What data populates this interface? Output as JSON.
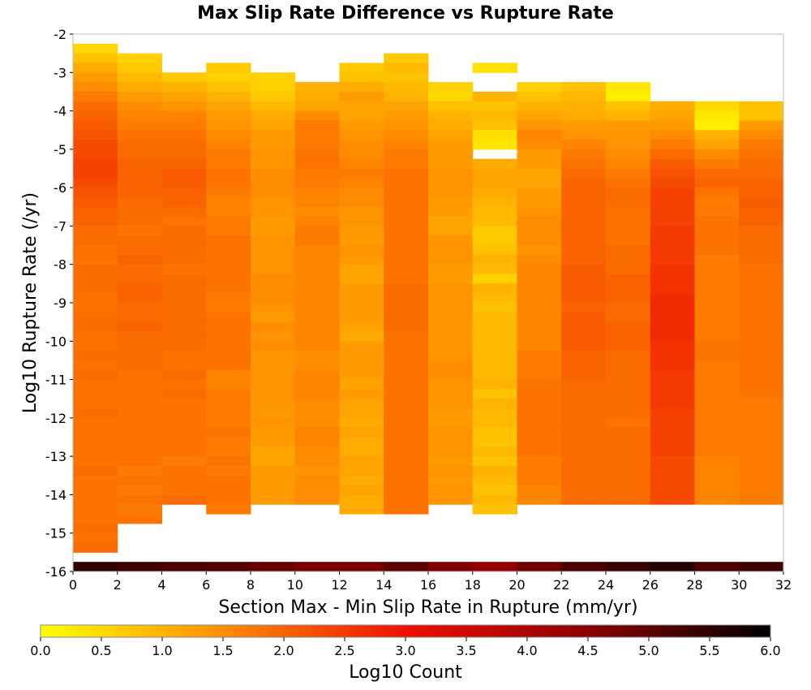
{
  "chart_data": {
    "type": "heatmap",
    "title": "Max Slip Rate Difference vs Rupture Rate",
    "xlabel": "Section Max - Min Slip Rate in Rupture (mm/yr)",
    "ylabel": "Log10 Rupture Rate (/yr)",
    "xlim": [
      0,
      32
    ],
    "ylim": [
      -16,
      -2
    ],
    "x_ticks": [
      "0",
      "2",
      "4",
      "6",
      "8",
      "10",
      "12",
      "14",
      "16",
      "18",
      "20",
      "22",
      "24",
      "26",
      "28",
      "30",
      "32"
    ],
    "y_ticks": [
      "-2",
      "-3",
      "-4",
      "-5",
      "-6",
      "-7",
      "-8",
      "-9",
      "-10",
      "-11",
      "-12",
      "-13",
      "-14",
      "-15",
      "-16"
    ],
    "colorbar": {
      "label": "Log10 Count",
      "range": [
        0,
        6
      ],
      "ticks": [
        "0.0",
        "0.5",
        "1.0",
        "1.5",
        "2.0",
        "2.5",
        "3.0",
        "3.5",
        "4.0",
        "4.5",
        "5.0",
        "5.5",
        "6.0"
      ],
      "colors": [
        "#ffff00",
        "#ff8c00",
        "#ee1100",
        "#8b0000",
        "#000000"
      ]
    },
    "x_bin_width": 2,
    "y_bin_height": 0.25,
    "columns": [
      {
        "x": 1,
        "ymax": -2.375,
        "values": [
          0.5,
          0.8,
          1.1,
          1.3,
          1.5,
          1.7,
          1.9,
          2.0,
          2.1,
          2.2,
          2.3,
          2.3,
          2.4,
          2.4,
          2.3,
          2.2,
          2.1,
          2.0,
          2.0,
          1.9,
          1.9,
          1.8,
          1.8,
          1.9,
          1.9,
          1.9,
          1.8,
          1.8,
          1.9,
          1.9,
          1.8,
          1.8,
          1.9,
          1.8,
          1.9,
          1.8,
          1.8,
          1.8,
          1.9,
          1.8,
          1.8,
          1.8,
          1.8,
          1.8,
          1.9,
          1.8,
          1.8,
          1.8,
          1.8,
          1.8,
          1.9,
          1.8,
          1.9
        ]
      },
      {
        "x": 3,
        "ymax": -2.625,
        "values": [
          0.6,
          0.7,
          0.9,
          1.1,
          1.3,
          1.5,
          1.6,
          1.7,
          1.8,
          1.9,
          1.9,
          2.0,
          2.0,
          2.0,
          2.0,
          1.9,
          1.9,
          1.9,
          1.8,
          1.9,
          1.9,
          2.0,
          1.9,
          1.9,
          2.0,
          2.0,
          1.9,
          1.9,
          2.0,
          1.9,
          1.9,
          1.9,
          1.9,
          1.8,
          1.8,
          1.8,
          1.8,
          1.8,
          1.8,
          1.8,
          1.8,
          1.8,
          1.8,
          1.7,
          1.8,
          1.7,
          1.8,
          1.7,
          1.8
        ]
      },
      {
        "x": 5,
        "ymax": -3.125,
        "values": [
          0.7,
          1.0,
          1.2,
          1.4,
          1.6,
          1.7,
          1.8,
          1.9,
          1.9,
          2.0,
          2.1,
          2.1,
          2.0,
          2.0,
          1.9,
          1.8,
          1.9,
          1.9,
          1.9,
          1.9,
          1.8,
          1.9,
          1.9,
          1.9,
          1.9,
          1.9,
          1.9,
          1.9,
          1.9,
          1.8,
          1.8,
          1.9,
          1.8,
          1.9,
          1.8,
          1.8,
          1.8,
          1.8,
          1.8,
          1.8,
          1.7,
          1.8,
          1.8,
          1.8,
          1.9
        ]
      },
      {
        "x": 7,
        "ymax": -2.875,
        "values": [
          0.7,
          0.6,
          0.8,
          1.0,
          1.2,
          1.3,
          1.4,
          1.5,
          1.6,
          1.7,
          1.7,
          1.8,
          1.8,
          1.7,
          1.6,
          1.6,
          1.7,
          1.7,
          1.8,
          1.8,
          1.8,
          1.8,
          1.8,
          1.8,
          1.7,
          1.7,
          1.8,
          1.8,
          1.8,
          1.8,
          1.8,
          1.8,
          1.6,
          1.6,
          1.7,
          1.7,
          1.7,
          1.7,
          1.8,
          1.7,
          1.7,
          1.8,
          1.7,
          1.8,
          1.8,
          1.8,
          1.7
        ]
      },
      {
        "x": 9,
        "ymax": -3.125,
        "values": [
          0.6,
          0.6,
          0.7,
          0.9,
          1.1,
          1.2,
          1.3,
          1.3,
          1.4,
          1.4,
          1.5,
          1.5,
          1.5,
          1.4,
          1.4,
          1.3,
          1.3,
          1.4,
          1.4,
          1.4,
          1.4,
          1.5,
          1.5,
          1.5,
          1.4,
          1.3,
          1.5,
          1.4,
          1.5,
          1.4,
          1.4,
          1.4,
          1.4,
          1.4,
          1.4,
          1.3,
          1.4,
          1.3,
          1.3,
          1.2,
          1.2,
          1.3,
          1.3,
          1.3,
          1.3
        ]
      },
      {
        "x": 11,
        "ymax": -3.375,
        "values": [
          1.0,
          1.1,
          1.2,
          1.5,
          1.7,
          1.7,
          1.7,
          1.8,
          1.8,
          1.7,
          1.7,
          1.6,
          1.6,
          1.5,
          1.6,
          1.7,
          1.7,
          1.6,
          1.6,
          1.6,
          1.6,
          1.6,
          1.6,
          1.6,
          1.6,
          1.6,
          1.6,
          1.6,
          1.5,
          1.5,
          1.6,
          1.6,
          1.6,
          1.5,
          1.5,
          1.5,
          1.6,
          1.6,
          1.5,
          1.5,
          1.4,
          1.5,
          1.5,
          1.5
        ]
      },
      {
        "x": 13,
        "ymax": -2.875,
        "values": [
          0.7,
          0.8,
          1.1,
          1.3,
          1.2,
          1.2,
          1.3,
          1.4,
          1.5,
          1.5,
          1.6,
          1.7,
          1.6,
          1.5,
          1.5,
          1.4,
          1.4,
          1.3,
          1.3,
          1.4,
          1.3,
          1.2,
          1.2,
          1.3,
          1.3,
          1.3,
          1.3,
          1.2,
          1.1,
          1.3,
          1.3,
          1.3,
          1.3,
          1.2,
          1.3,
          1.2,
          1.2,
          1.1,
          1.2,
          1.1,
          1.1,
          1.2,
          1.2,
          1.1,
          1.2,
          1.1,
          1.1
        ]
      },
      {
        "x": 15,
        "ymax": -2.625,
        "values": [
          0.7,
          0.9,
          0.8,
          0.9,
          1.0,
          1.2,
          1.3,
          1.4,
          1.5,
          1.6,
          1.7,
          1.7,
          1.8,
          1.8,
          1.8,
          1.8,
          1.8,
          1.8,
          1.8,
          1.8,
          1.8,
          1.8,
          1.8,
          1.8,
          1.9,
          1.9,
          1.9,
          1.9,
          1.9,
          1.8,
          1.8,
          1.8,
          1.8,
          1.8,
          1.8,
          1.8,
          1.8,
          1.8,
          1.8,
          1.8,
          1.8,
          1.8,
          1.8,
          1.8,
          1.8,
          1.8,
          1.8,
          1.8
        ]
      },
      {
        "x": 17,
        "ymax": -3.375,
        "values": [
          0.6,
          0.5,
          0.8,
          1.0,
          1.1,
          1.2,
          1.3,
          1.3,
          1.3,
          1.4,
          1.4,
          1.4,
          1.3,
          1.3,
          1.2,
          1.2,
          1.4,
          1.4,
          1.4,
          1.3,
          1.3,
          1.4,
          1.4,
          1.4,
          1.4,
          1.4,
          1.4,
          1.4,
          1.4,
          1.5,
          1.5,
          1.4,
          1.4,
          1.4,
          1.3,
          1.3,
          1.4,
          1.4,
          1.4,
          1.3,
          1.4,
          1.3,
          1.4,
          1.4
        ]
      },
      {
        "x": 19,
        "ymax": -2.875,
        "values": [
          0.4,
          null,
          null,
          1.0,
          0.8,
          0.9,
          0.8,
          0.4,
          0.3,
          null,
          1.1,
          1.2,
          1.2,
          1.1,
          1.0,
          0.9,
          0.9,
          0.7,
          0.7,
          0.8,
          1.0,
          0.9,
          0.6,
          1.0,
          0.9,
          0.8,
          0.9,
          0.9,
          0.9,
          0.9,
          0.9,
          0.9,
          0.9,
          1.0,
          0.8,
          1.0,
          0.9,
          0.9,
          0.8,
          0.8,
          0.9,
          0.8,
          1.0,
          0.9,
          0.8,
          0.9,
          0.8
        ]
      },
      {
        "x": 21,
        "ymax": -3.375,
        "values": [
          0.6,
          0.8,
          1.0,
          1.2,
          1.4,
          1.6,
          1.5,
          1.3,
          1.3,
          1.2,
          1.2,
          1.3,
          1.3,
          1.4,
          1.5,
          1.5,
          1.5,
          1.4,
          1.5,
          1.6,
          1.6,
          1.6,
          1.6,
          1.6,
          1.6,
          1.6,
          1.6,
          1.6,
          1.7,
          1.7,
          1.7,
          1.8,
          1.8,
          1.8,
          1.8,
          1.8,
          1.8,
          1.8,
          1.8,
          1.7,
          1.7,
          1.7,
          1.6,
          1.6
        ]
      },
      {
        "x": 23,
        "ymax": -3.375,
        "values": [
          0.8,
          0.9,
          1.0,
          1.1,
          1.3,
          1.4,
          1.6,
          1.7,
          1.8,
          1.9,
          2.0,
          2.0,
          2.0,
          2.0,
          2.0,
          2.0,
          2.0,
          2.0,
          2.0,
          2.1,
          2.1,
          2.1,
          2.1,
          2.0,
          2.1,
          2.1,
          2.1,
          2.1,
          2.0,
          2.0,
          2.0,
          1.9,
          1.9,
          1.9,
          1.9,
          1.9,
          1.9,
          1.9,
          1.9,
          1.9,
          1.9,
          1.9,
          1.9,
          1.9
        ]
      },
      {
        "x": 25,
        "ymax": -3.375,
        "values": [
          0.3,
          0.2,
          0.8,
          1.0,
          1.3,
          1.4,
          1.4,
          1.5,
          1.6,
          1.7,
          1.8,
          1.9,
          1.9,
          1.8,
          1.8,
          1.8,
          1.8,
          1.9,
          1.9,
          1.9,
          2.0,
          2.0,
          2.0,
          1.9,
          1.9,
          2.0,
          2.0,
          2.0,
          1.9,
          1.9,
          1.9,
          1.9,
          1.9,
          1.9,
          1.9,
          1.8,
          1.9,
          1.9,
          1.9,
          1.9,
          1.9,
          1.9,
          1.9,
          1.9
        ]
      },
      {
        "x": 27,
        "ymax": -3.875,
        "values": [
          1.1,
          1.2,
          1.3,
          1.5,
          1.7,
          1.9,
          2.1,
          2.2,
          2.3,
          2.4,
          2.4,
          2.4,
          2.4,
          2.5,
          2.5,
          2.5,
          2.5,
          2.6,
          2.6,
          2.6,
          2.7,
          2.7,
          2.7,
          2.7,
          2.7,
          2.6,
          2.6,
          2.6,
          2.5,
          2.5,
          2.5,
          2.5,
          2.4,
          2.4,
          2.4,
          2.4,
          2.4,
          2.3,
          2.3,
          2.3,
          2.3,
          2.3
        ]
      },
      {
        "x": 29,
        "ymax": -3.875,
        "values": [
          0.5,
          0.3,
          0.2,
          1.0,
          1.2,
          1.5,
          1.7,
          1.9,
          2.0,
          1.8,
          1.7,
          1.7,
          1.8,
          1.8,
          1.8,
          1.8,
          1.7,
          1.7,
          1.7,
          1.7,
          1.7,
          1.7,
          1.7,
          1.7,
          1.7,
          1.8,
          1.8,
          1.7,
          1.7,
          1.7,
          1.7,
          1.7,
          1.7,
          1.7,
          1.7,
          1.7,
          1.7,
          1.6,
          1.6,
          1.6,
          1.6,
          1.6
        ]
      },
      {
        "x": 31,
        "ymax": -3.875,
        "values": [
          0.8,
          0.8,
          1.3,
          1.5,
          1.7,
          1.8,
          1.9,
          1.9,
          2.0,
          2.0,
          2.1,
          2.0,
          2.0,
          1.9,
          1.9,
          1.9,
          1.9,
          1.8,
          1.8,
          1.8,
          1.8,
          1.8,
          1.8,
          1.8,
          1.8,
          1.8,
          1.8,
          1.8,
          1.8,
          1.8,
          1.8,
          1.7,
          1.7,
          1.7,
          1.7,
          1.7,
          1.7,
          1.7,
          1.7,
          1.7,
          1.7,
          1.7
        ]
      }
    ],
    "bottom_row": {
      "y": -15.875,
      "values": [
        5.5,
        5.3,
        5.2,
        5.1,
        4.9,
        4.7,
        4.7,
        5.0,
        4.6,
        4.4,
        4.8,
        5.2,
        5.4,
        5.6,
        5.2,
        5.3
      ]
    }
  }
}
